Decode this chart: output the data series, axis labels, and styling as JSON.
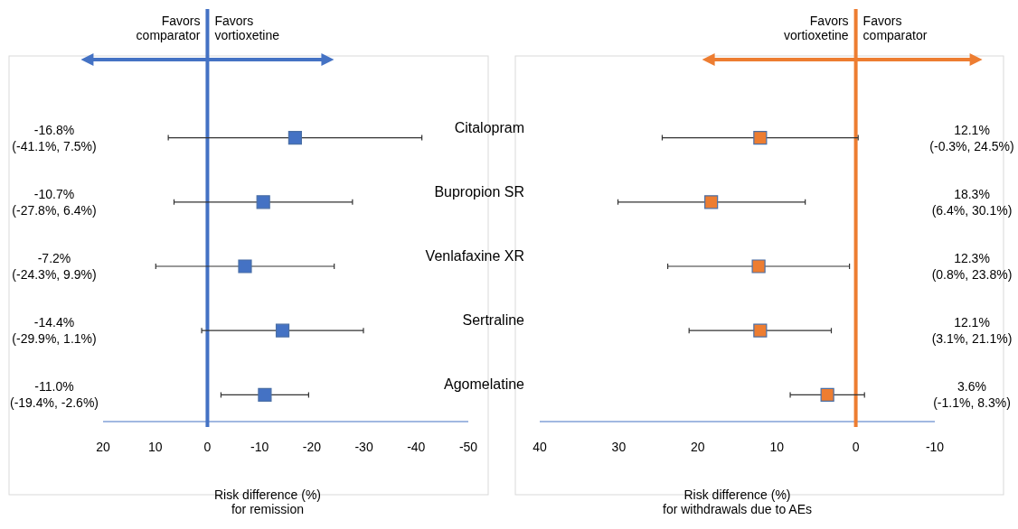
{
  "chart_data": [
    {
      "type": "scatter",
      "orientation": "horizontal",
      "marker": "square",
      "tick_labels": "x",
      "categories": [
        null,
        null,
        null,
        null,
        null
      ],
      "series": [
        {
          "color": "#4472c4",
          "values": [
            -16.8,
            -10.7,
            -7.2,
            -14.4,
            -11.0
          ],
          "errors": [
            [
              -41.1,
              7.5
            ],
            [
              -27.8,
              6.4
            ],
            [
              -24.3,
              9.9
            ],
            [
              -29.9,
              1.1
            ],
            [
              -19.4,
              -2.6
            ]
          ],
          "value_labels": [
            "-16.8%\n(-41.1%, 7.5%)",
            "-10.7%\n(-27.8%, 6.4%)",
            "-7.2%\n(-24.3%, 9.9%)",
            "-14.4%\n(-29.9%, 1.1%)",
            "-11.0%\n(-19.4%, -2.6%)"
          ]
        }
      ],
      "xlim": [
        20,
        -50
      ],
      "xticks": [
        20,
        10,
        0,
        -10,
        -20,
        -30,
        -40,
        -50
      ],
      "xlabel": "Risk difference (%)\nfor remission",
      "ref_lines": [
        {
          "axis": "x",
          "value": 0,
          "color": "#4472c4"
        }
      ],
      "annotations": [
        "Favors\ncomparator",
        "Favors\nvortioxetine"
      ]
    },
    {
      "type": "scatter",
      "orientation": "horizontal",
      "marker": "square",
      "categories": [
        "Citalopram",
        "Bupropion SR",
        "Venlafaxine XR",
        "Sertraline",
        "Agomelatine"
      ],
      "series": [
        {
          "color": "#ed7d31",
          "values": [
            12.1,
            18.3,
            12.3,
            12.1,
            3.6
          ],
          "errors": [
            [
              -0.3,
              24.5
            ],
            [
              6.4,
              30.1
            ],
            [
              0.8,
              23.8
            ],
            [
              3.1,
              21.1
            ],
            [
              -1.1,
              8.3
            ]
          ],
          "value_labels": [
            "12.1%\n(-0.3%, 24.5%)",
            "18.3%\n(6.4%, 30.1%)",
            "12.3%\n(0.8%, 23.8%)",
            "12.1%\n(3.1%, 21.1%)",
            "3.6%\n(-1.1%, 8.3%)"
          ]
        }
      ],
      "xlim": [
        40,
        -10
      ],
      "xticks": [
        40,
        30,
        20,
        10,
        0,
        -10
      ],
      "xlabel": "Risk difference (%)\nfor withdrawals due to AEs",
      "ref_lines": [
        {
          "axis": "x",
          "value": 0,
          "color": "#ed7d31"
        }
      ],
      "annotations": [
        "Favors\nvortioxetine",
        "Favors\ncomparator"
      ]
    }
  ]
}
